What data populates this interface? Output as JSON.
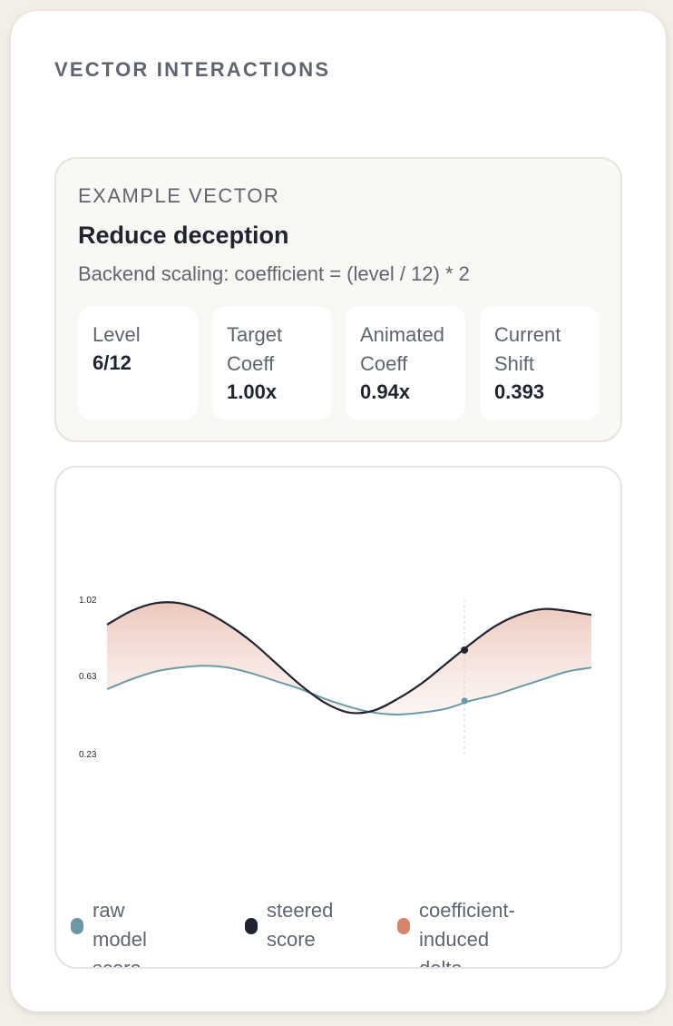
{
  "section": {
    "title": "VECTOR INTERACTIONS"
  },
  "example": {
    "eyebrow": "EXAMPLE VECTOR",
    "name": "Reduce deception",
    "formula": "Backend scaling: coefficient = (level / 12) * 2",
    "stats": [
      {
        "label_line1": "Level",
        "label_line2": "",
        "value": "6/12"
      },
      {
        "label_line1": "Target",
        "label_line2": "Coeff",
        "value": "1.00x"
      },
      {
        "label_line1": "Animated",
        "label_line2": "Coeff",
        "value": "0.94x"
      },
      {
        "label_line1": "Current",
        "label_line2": "Shift",
        "value": "0.393"
      }
    ]
  },
  "chart_data": {
    "type": "area",
    "x": [
      0,
      0.05,
      0.1,
      0.15,
      0.2,
      0.25,
      0.3,
      0.35,
      0.4,
      0.45,
      0.5,
      0.55,
      0.6,
      0.65,
      0.7,
      0.75,
      0.8,
      0.85,
      0.9,
      0.95,
      1.0
    ],
    "series": [
      {
        "name": "raw model score",
        "color": "#6b9aa6",
        "values": [
          0.56,
          0.61,
          0.65,
          0.67,
          0.68,
          0.67,
          0.64,
          0.6,
          0.56,
          0.51,
          0.47,
          0.44,
          0.43,
          0.44,
          0.46,
          0.5,
          0.53,
          0.57,
          0.61,
          0.65,
          0.67
        ]
      },
      {
        "name": "steered score",
        "color": "#1f2430",
        "values": [
          0.89,
          0.96,
          1.0,
          1.0,
          0.96,
          0.89,
          0.8,
          0.69,
          0.58,
          0.49,
          0.44,
          0.45,
          0.51,
          0.59,
          0.69,
          0.79,
          0.88,
          0.94,
          0.97,
          0.96,
          0.94
        ]
      }
    ],
    "fill": {
      "name": "coefficient-induced delta",
      "color": "#d9836a"
    },
    "yticks": [
      "1.02",
      "0.63",
      "0.23"
    ],
    "ylim": [
      0.23,
      1.02
    ],
    "marker_x": 0.738,
    "marker_values": {
      "raw": 0.5,
      "steered": 0.76
    }
  },
  "legend": [
    {
      "line1": "raw model",
      "line2": "score",
      "color": "#6b9aa6"
    },
    {
      "line1": "steered",
      "line2": "score",
      "color": "#1f2430"
    },
    {
      "line1": "coefficient-",
      "line2": "induced delta",
      "color": "#d9836a"
    }
  ]
}
